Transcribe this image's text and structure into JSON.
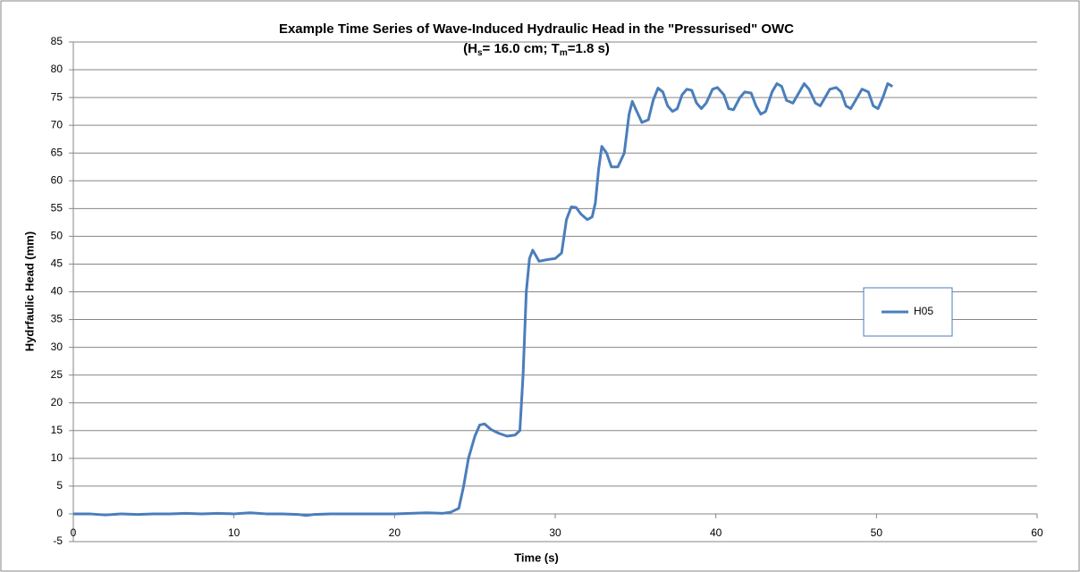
{
  "chart_data": {
    "type": "line",
    "title": "Example Time Series of Wave-Induced Hydraulic Head in the \"Pressurised\" OWC",
    "subtitle_parts": [
      "(H",
      "s",
      "= 16.0 cm; T",
      "m",
      "=1.8 s)"
    ],
    "x_label": "Time (s)",
    "y_label": "Hydrfaulic Head (mm)",
    "x": [
      0,
      1,
      2,
      3,
      4,
      5,
      6,
      7,
      8,
      9,
      10,
      11,
      12,
      13,
      14,
      14.5,
      15,
      16,
      17,
      18,
      19,
      20,
      21,
      22,
      23,
      23.5,
      24,
      24.3,
      24.6,
      25,
      25.3,
      25.6,
      26,
      26.5,
      27,
      27.5,
      27.8,
      28,
      28.2,
      28.4,
      28.6,
      28.8,
      29,
      29.5,
      30,
      30.4,
      30.7,
      31,
      31.3,
      31.6,
      32,
      32.3,
      32.5,
      32.7,
      32.9,
      33.2,
      33.5,
      33.9,
      34.3,
      34.6,
      34.8,
      35,
      35.4,
      35.8,
      36.1,
      36.4,
      36.7,
      37,
      37.3,
      37.6,
      37.9,
      38.2,
      38.5,
      38.8,
      39.1,
      39.4,
      39.8,
      40.1,
      40.5,
      40.8,
      41.1,
      41.5,
      41.8,
      42.2,
      42.5,
      42.8,
      43.1,
      43.5,
      43.8,
      44.1,
      44.4,
      44.8,
      45.1,
      45.5,
      45.8,
      46.2,
      46.5,
      46.8,
      47.1,
      47.5,
      47.8,
      48.1,
      48.4,
      48.8,
      49.1,
      49.5,
      49.8,
      50.1,
      50.4,
      50.7,
      51
    ],
    "series": [
      {
        "name": "H05",
        "color": "#4a7ebb",
        "values": [
          0,
          0,
          -0.2,
          0,
          -0.1,
          0,
          0,
          0.1,
          0,
          0.1,
          0,
          0.2,
          0,
          0,
          -0.1,
          -0.3,
          -0.1,
          0,
          0,
          0,
          0,
          0,
          0.1,
          0.2,
          0.1,
          0.3,
          1,
          5,
          10,
          14,
          16,
          16.2,
          15.2,
          14.5,
          14,
          14.2,
          15,
          25,
          40,
          46,
          47.5,
          46.5,
          45.5,
          45.8,
          46,
          47,
          53,
          55.3,
          55.2,
          54,
          53,
          53.5,
          56,
          62,
          66.2,
          65,
          62.5,
          62.5,
          65,
          72,
          74.3,
          73,
          70.5,
          71,
          74.5,
          76.7,
          76,
          73.5,
          72.5,
          73,
          75.5,
          76.5,
          76.3,
          74,
          73,
          74,
          76.5,
          76.8,
          75.5,
          73,
          72.8,
          75,
          76,
          75.8,
          73.5,
          72,
          72.5,
          76,
          77.5,
          77,
          74.5,
          74,
          75.5,
          77.5,
          76.5,
          74,
          73.5,
          75,
          76.5,
          76.8,
          76,
          73.5,
          73,
          75,
          76.5,
          76,
          73.5,
          73,
          75,
          77.5,
          77
        ]
      }
    ],
    "xlim": [
      0,
      60
    ],
    "xticks": [
      0,
      10,
      20,
      30,
      40,
      50,
      60
    ],
    "ylim": [
      -5,
      85
    ],
    "yticks": [
      -5,
      0,
      5,
      10,
      15,
      20,
      25,
      30,
      35,
      40,
      45,
      50,
      55,
      60,
      65,
      70,
      75,
      80,
      85
    ],
    "grid": true,
    "legend": "right"
  }
}
